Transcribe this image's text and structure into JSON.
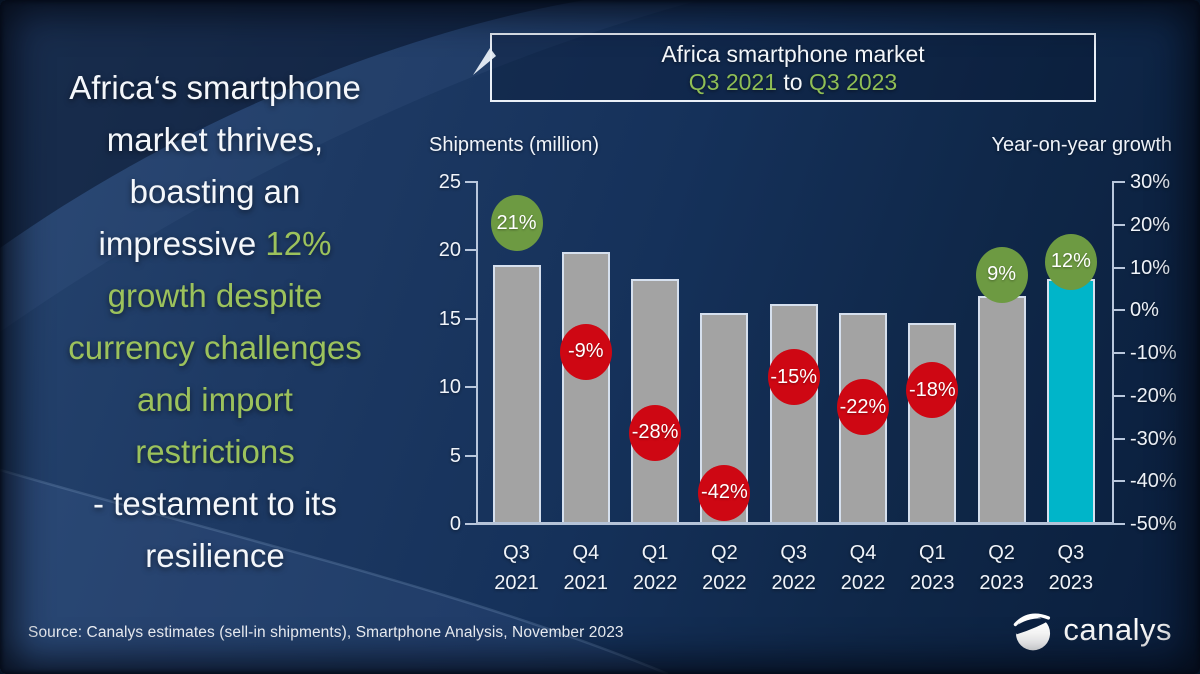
{
  "slide": {
    "headline": {
      "lines": [
        {
          "segments": [
            {
              "text": "Africa‘s smartphone",
              "color": "white"
            }
          ]
        },
        {
          "segments": [
            {
              "text": "market thrives,",
              "color": "white"
            }
          ]
        },
        {
          "segments": [
            {
              "text": "boasting an",
              "color": "white"
            }
          ]
        },
        {
          "segments": [
            {
              "text": "impressive ",
              "color": "white"
            },
            {
              "text": "12%",
              "color": "green"
            }
          ]
        },
        {
          "segments": [
            {
              "text": "growth despite",
              "color": "green"
            }
          ]
        },
        {
          "segments": [
            {
              "text": "currency challenges",
              "color": "green"
            }
          ]
        },
        {
          "segments": [
            {
              "text": "and import",
              "color": "green"
            }
          ]
        },
        {
          "segments": [
            {
              "text": "restrictions",
              "color": "green"
            }
          ]
        },
        {
          "segments": [
            {
              "text": "- testament to its",
              "color": "white"
            }
          ]
        },
        {
          "segments": [
            {
              "text": "resilience",
              "color": "white"
            }
          ]
        }
      ]
    },
    "title_box": {
      "line1": "Africa smartphone market",
      "range_start": "Q3 2021",
      "range_connector": " to ",
      "range_end": "Q3 2023"
    },
    "source": "Source: Canalys estimates (sell-in shipments), Smartphone Analysis, November 2023",
    "logo_text": "canalys",
    "icons": {
      "logo": "canalys-swoosh-icon"
    }
  },
  "chart_data": {
    "type": "bar",
    "title": "Africa smartphone market Q3 2021 to Q3 2023",
    "left_axis_label": "Shipments (million)",
    "right_axis_label": "Year-on-year growth",
    "categories": [
      {
        "q": "Q3",
        "year": "2021"
      },
      {
        "q": "Q4",
        "year": "2021"
      },
      {
        "q": "Q1",
        "year": "2022"
      },
      {
        "q": "Q2",
        "year": "2022"
      },
      {
        "q": "Q3",
        "year": "2022"
      },
      {
        "q": "Q4",
        "year": "2022"
      },
      {
        "q": "Q1",
        "year": "2023"
      },
      {
        "q": "Q2",
        "year": "2023"
      },
      {
        "q": "Q3",
        "year": "2023"
      }
    ],
    "series": [
      {
        "name": "Shipments (million)",
        "type": "bar",
        "values": [
          18.9,
          19.9,
          17.9,
          15.4,
          16.1,
          15.4,
          14.7,
          16.7,
          17.9
        ]
      },
      {
        "name": "Year-on-year growth",
        "type": "point",
        "values": [
          21,
          -9,
          -28,
          -42,
          -15,
          -22,
          -18,
          9,
          12
        ],
        "labels": [
          "21%",
          "-9%",
          "-28%",
          "-42%",
          "-15%",
          "-22%",
          "-18%",
          "9%",
          "12%"
        ]
      }
    ],
    "left_axis_ticks": [
      "0",
      "5",
      "10",
      "15",
      "20",
      "25"
    ],
    "right_axis_ticks": [
      "30%",
      "20%",
      "10%",
      "0%",
      "-10%",
      "-20%",
      "-30%",
      "-40%",
      "-50%"
    ],
    "left_ylim": [
      0,
      25
    ],
    "right_ylim": [
      -50,
      30
    ],
    "grid": false,
    "legend_position": "none",
    "highlight_index": 8,
    "colors": {
      "bar": "#a3a3a3",
      "bar_border": "#d6e0ee",
      "bar_highlight": "#00b5c9",
      "badge_positive": "#6d9a42",
      "badge_negative": "#ce0713",
      "accent_green_text": "#9cc25c",
      "background_navy": "#15315a",
      "axis": "#b9c7dc"
    }
  }
}
